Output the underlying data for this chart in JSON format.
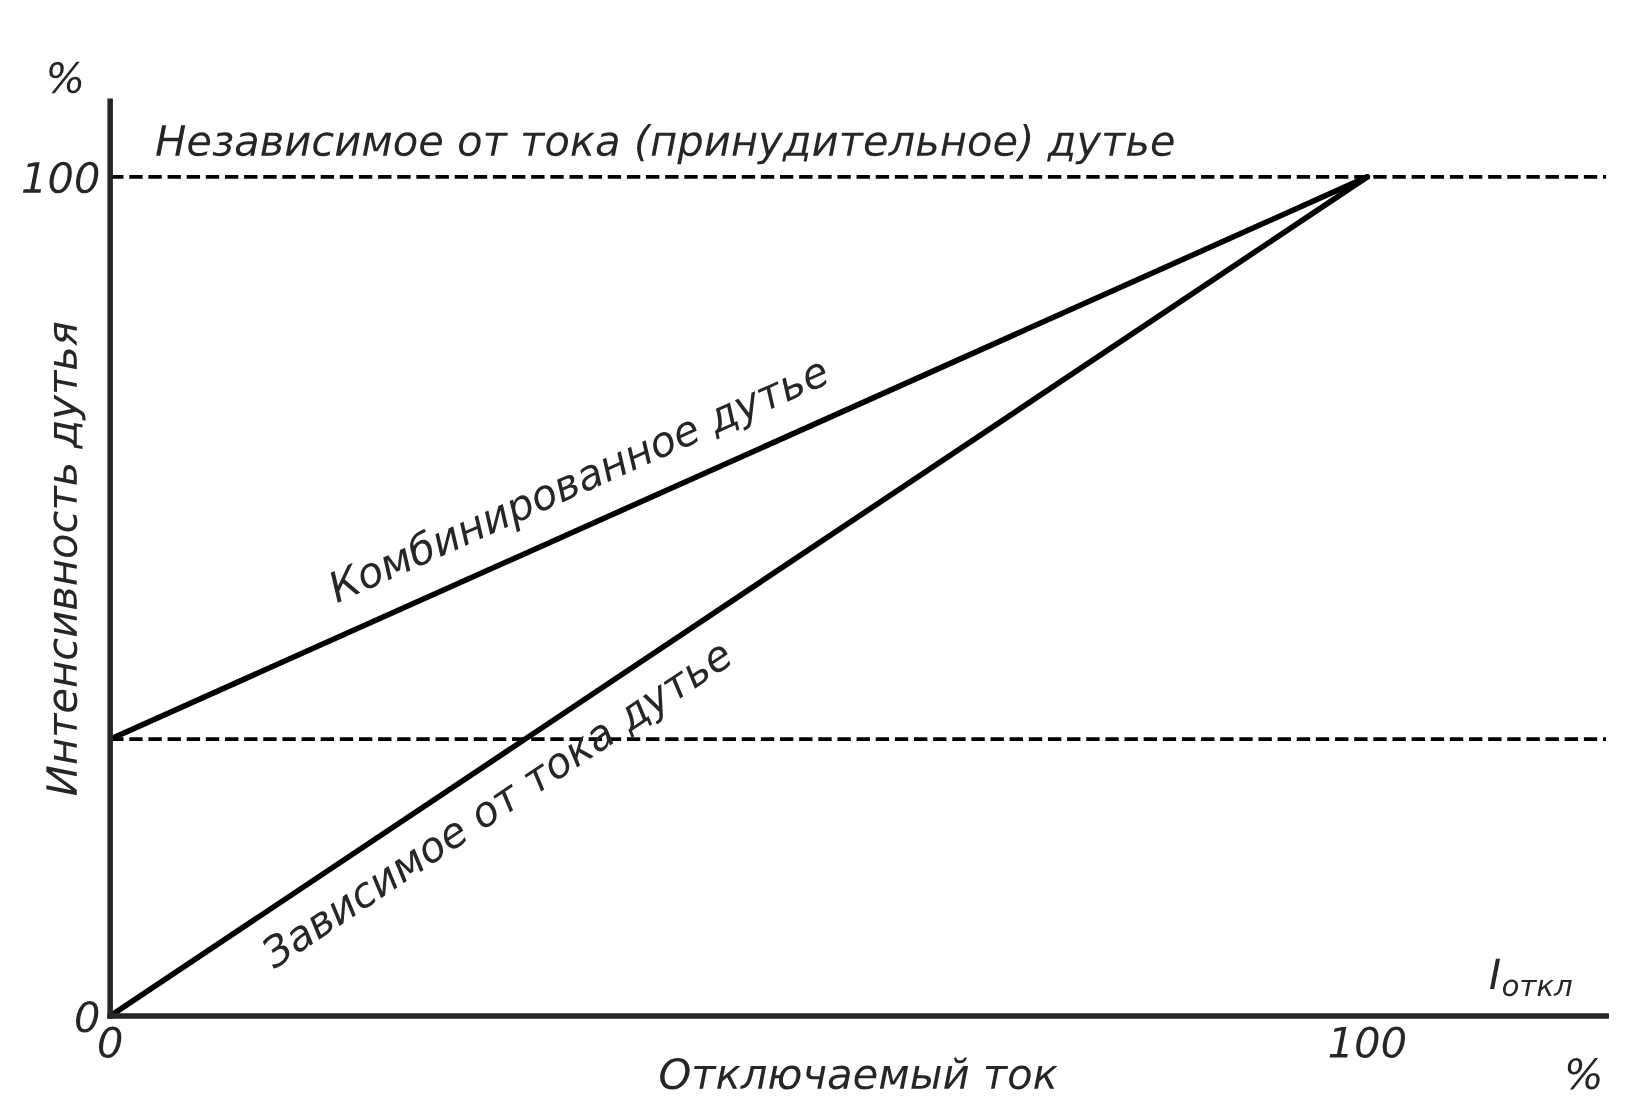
{
  "chart_data": {
    "type": "line",
    "xlabel": "Отключаемый ток",
    "ylabel": "Интенсивность дутья",
    "x": [
      0,
      100
    ],
    "series": [
      {
        "name": "Комбинированное дутье",
        "color": "#000000",
        "values": [
          33,
          100
        ]
      },
      {
        "name": "Зависимое от тока дутье",
        "color": "#000000",
        "values": [
          0,
          100
        ]
      }
    ],
    "xlim": [
      0,
      119
    ],
    "ylim": [
      0,
      109
    ],
    "xticks": [
      0,
      100
    ],
    "yticks": [
      0,
      100
    ],
    "ref_lines": [
      {
        "axis": "y",
        "value": 100,
        "label": "Независимое от тока (принудительное) дутье",
        "color": "#000000",
        "line_style": "dashed"
      },
      {
        "axis": "y",
        "value": 33,
        "label": null,
        "color": "#000000",
        "line_style": "dashed"
      }
    ],
    "annotations": [
      "%",
      "I$_{откл}$",
      "%"
    ],
    "grid": false,
    "legend": false,
    "marker": "none",
    "line_style": "solid"
  }
}
